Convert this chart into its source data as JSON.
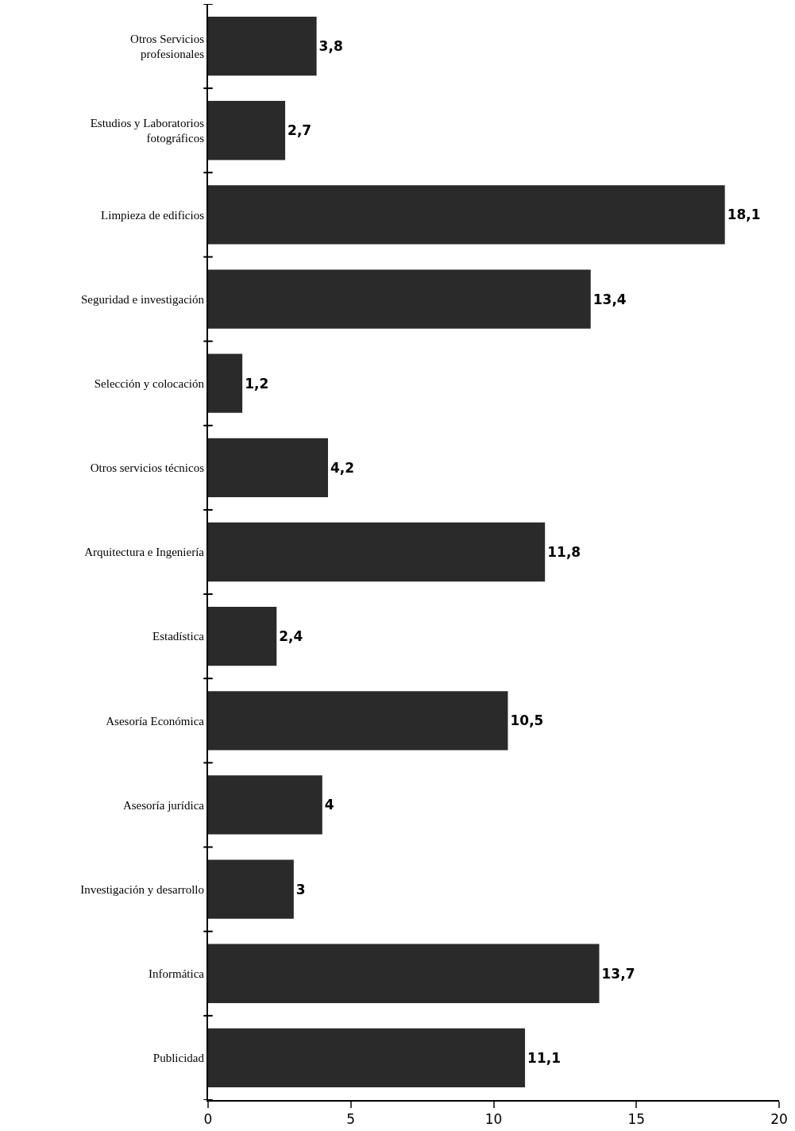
{
  "chart_data": {
    "type": "bar",
    "orientation": "horizontal",
    "categories": [
      "Otros Servicios\nprofesionales",
      "Estudios y Laboratorios\nfotográficos",
      "Limpieza de edificios",
      "Seguridad e investigación",
      "Selección y colocación",
      "Otros servicios técnicos",
      "Arquitectura e Ingeniería",
      "Estadística",
      "Asesoría Económica",
      "Asesoría jurídica",
      "Investigación y desarrollo",
      "Informática",
      "Publicidad"
    ],
    "values": [
      3.8,
      2.7,
      18.1,
      13.4,
      1.2,
      4.2,
      11.8,
      2.4,
      10.5,
      4,
      3,
      13.7,
      11.1
    ],
    "value_labels": [
      "3,8",
      "2,7",
      "18,1",
      "13,4",
      "1,2",
      "4,2",
      "11,8",
      "2,4",
      "10,5",
      "4",
      "3",
      "13,7",
      "11,1"
    ],
    "color": "#2a2a2a",
    "xlim": [
      0,
      20
    ],
    "xticks": [
      0,
      5,
      10,
      15,
      20
    ]
  }
}
